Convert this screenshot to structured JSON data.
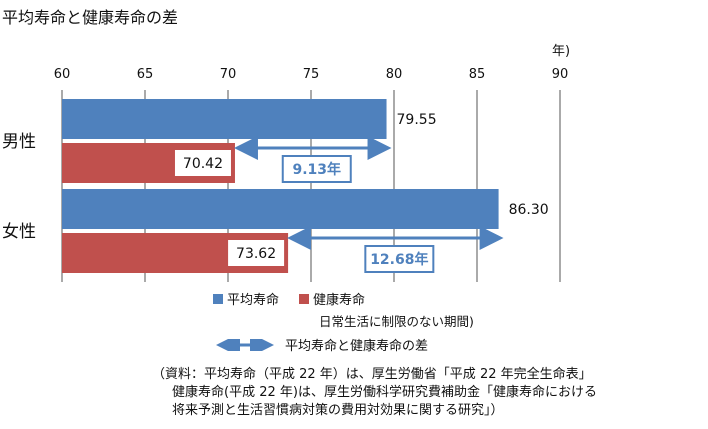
{
  "title": "平均寿命と健康寿命の差",
  "unit": "年)",
  "chart_data": {
    "type": "bar",
    "orientation": "horizontal",
    "categories": [
      "男性",
      "女性"
    ],
    "series": [
      {
        "name": "平均寿命",
        "values": [
          79.55,
          86.3
        ],
        "color": "#4f81bd"
      },
      {
        "name": "健康寿命",
        "values": [
          70.42,
          73.62
        ],
        "color": "#c0504d"
      }
    ],
    "value_labels": {
      "平均寿命": [
        "79.55",
        "86.30"
      ],
      "健康寿命": [
        "70.42",
        "73.62"
      ]
    },
    "differences": [
      "9.13年",
      "12.68年"
    ],
    "xlim": [
      60,
      90
    ],
    "xticks": [
      "60",
      "65",
      "70",
      "75",
      "80",
      "85",
      "90"
    ],
    "grid": true,
    "arrow_color": "#4f81bd"
  },
  "legend": {
    "items": [
      {
        "label": "平均寿命",
        "color": "#4f81bd"
      },
      {
        "label": "健康寿命",
        "color": "#c0504d"
      }
    ],
    "sub_note": "日常生活に制限のない期間)",
    "arrow_label": "平均寿命と健康寿命の差"
  },
  "source": {
    "line1": "（資料：平均寿命（平成 22 年）は、厚生労働省「平成 22 年完全生命表」",
    "line2": "健康寿命(平成 22 年)は、厚生労働科学研究費補助金「健康寿命における",
    "line3": "将来予測と生活習慣病対策の費用対効果に関する研究」）"
  }
}
